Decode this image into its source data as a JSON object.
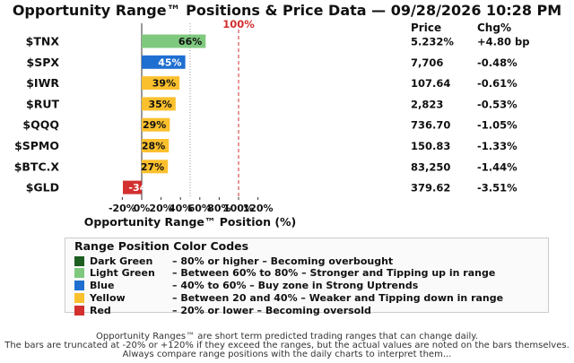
{
  "title": "Opportunity Range™ Positions & Price Data — 09/28/2026 10:28 PM",
  "chart_data": {
    "type": "bar",
    "orientation": "horizontal",
    "categories": [
      "$TNX",
      "$SPX",
      "$IWR",
      "$RUT",
      "$QQQ",
      "$SPMO",
      "$BTC.X",
      "$GLD"
    ],
    "values": [
      66,
      45,
      39,
      35,
      29,
      28,
      27,
      -34
    ],
    "value_labels": [
      "66%",
      "45%",
      "39%",
      "35%",
      "29%",
      "28%",
      "27%",
      "-34%"
    ],
    "bar_colors": [
      "#7fc97f",
      "#1f6fd1",
      "#fbc02d",
      "#fbc02d",
      "#fbc02d",
      "#fbc02d",
      "#fbc02d",
      "#d32f2f"
    ],
    "bar_label_colors": [
      "#111111",
      "#ffffff",
      "#111111",
      "#111111",
      "#111111",
      "#111111",
      "#111111",
      "#ffffff"
    ],
    "xlabel": "Opportunity Range™ Position (%)",
    "xlim": [
      -40,
      130
    ],
    "xticks": [
      -20,
      0,
      20,
      40,
      60,
      80,
      100,
      120
    ],
    "xtick_labels": [
      "-20%",
      "0%",
      "20%",
      "40%",
      "60%",
      "80%",
      "100%",
      "120%"
    ],
    "reference_lines": [
      {
        "x": 50,
        "style": "dotted",
        "color": "#999999"
      },
      {
        "x": 100,
        "style": "dashed",
        "color": "#d32f2f",
        "label": "100%"
      }
    ],
    "grid": false,
    "columns": {
      "price_header": "Price",
      "change_header": "Chg%",
      "prices": [
        "5.232%",
        "7,706",
        "107.64",
        "2,823",
        "736.70",
        "150.83",
        "83,250",
        "379.62"
      ],
      "changes": [
        "+4.80 bp",
        "-0.48%",
        "-0.61%",
        "-0.53%",
        "-1.05%",
        "-1.33%",
        "-1.44%",
        "-3.51%"
      ]
    }
  },
  "legend": {
    "title": "Range Position Color Codes",
    "items": [
      {
        "color": "#1b5e20",
        "name": "Dark Green",
        "desc": "–  80% or higher  –  Becoming overbought"
      },
      {
        "color": "#7fc97f",
        "name": "Light Green",
        "desc": "–  Between 60% to 80%  –  Stronger and Tipping up in range"
      },
      {
        "color": "#1f6fd1",
        "name": "Blue",
        "desc": "–  40% to 60%  –  Buy zone in Strong Uptrends"
      },
      {
        "color": "#fbc02d",
        "name": "Yellow",
        "desc": "–  Between 20 and 40%  –  Weaker and Tipping down in range"
      },
      {
        "color": "#d32f2f",
        "name": "Red",
        "desc": "–  20% or lower  –  Becoming oversold"
      }
    ]
  },
  "footer": {
    "line1": "Opportunity Ranges™ are short term predicted trading ranges that can change daily.",
    "line2": "The bars are truncated at -20% or +120% if they exceed the ranges, but the actual values are noted on the bars themselves.",
    "line3": "Always compare range positions with the daily charts to interpret them..."
  }
}
